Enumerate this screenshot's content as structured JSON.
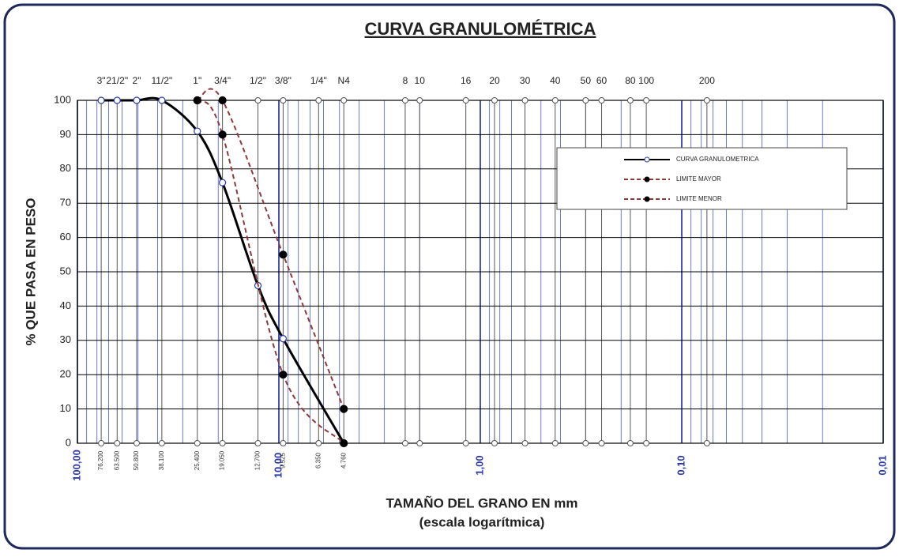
{
  "chart_data": {
    "type": "line",
    "title": "CURVA GRANULOMÉTRICA",
    "xlabel": "TAMAÑO DEL GRANO EN mm",
    "xlabel_note": "(escala logarítmica)",
    "ylabel": "% QUE PASA EN PESO",
    "log_x": true,
    "xlim": [
      100,
      0.01
    ],
    "ylim": [
      0,
      100
    ],
    "yticks": [
      0,
      10,
      20,
      30,
      40,
      50,
      60,
      70,
      80,
      90,
      100
    ],
    "xticks": [
      {
        "value": 100,
        "label": "100,00"
      },
      {
        "value": 10,
        "label": "10,00"
      },
      {
        "value": 1,
        "label": "1,00"
      },
      {
        "value": 0.1,
        "label": "0,10"
      },
      {
        "value": 0.01,
        "label": "0,01"
      }
    ],
    "sieves": [
      {
        "value": 76.2,
        "label": "3\""
      },
      {
        "value": 63.5,
        "label": "21/2\""
      },
      {
        "value": 50.8,
        "label": "2\""
      },
      {
        "value": 38.1,
        "label": "11/2\""
      },
      {
        "value": 25.4,
        "label": "1\""
      },
      {
        "value": 19.05,
        "label": "3/4\""
      },
      {
        "value": 12.7,
        "label": "1/2\""
      },
      {
        "value": 9.525,
        "label": "3/8\""
      },
      {
        "value": 6.35,
        "label": "1/4\""
      },
      {
        "value": 4.76,
        "label": "N4"
      },
      {
        "value": 2.36,
        "label": "8"
      },
      {
        "value": 2,
        "label": "10"
      },
      {
        "value": 1.18,
        "label": "16"
      },
      {
        "value": 0.85,
        "label": "20"
      },
      {
        "value": 0.6,
        "label": "30"
      },
      {
        "value": 0.425,
        "label": "40"
      },
      {
        "value": 0.3,
        "label": "50"
      },
      {
        "value": 0.25,
        "label": "60"
      },
      {
        "value": 0.18,
        "label": "80"
      },
      {
        "value": 0.15,
        "label": "100"
      },
      {
        "value": 0.075,
        "label": "200"
      }
    ],
    "size_ticks": [
      {
        "value": 76.2,
        "label": "76.200"
      },
      {
        "value": 63.5,
        "label": "63.500"
      },
      {
        "value": 50.8,
        "label": "50.800"
      },
      {
        "value": 38.1,
        "label": "38.100"
      },
      {
        "value": 25.4,
        "label": "25.400"
      },
      {
        "value": 19.05,
        "label": "19.050"
      },
      {
        "value": 12.7,
        "label": "12.700"
      },
      {
        "value": 9.525,
        "label": "9.525"
      },
      {
        "value": 6.35,
        "label": "6.350"
      },
      {
        "value": 4.76,
        "label": "4.760"
      }
    ],
    "series": [
      {
        "name": "CURVA GRANULOMETRICA",
        "color": "#000000",
        "dash": false,
        "marker": "open",
        "x": [
          76.2,
          63.5,
          50.8,
          38.1,
          25.4,
          19.05,
          12.7,
          9.525,
          4.76
        ],
        "values": [
          100,
          100,
          100,
          100,
          91,
          76,
          46,
          30.5,
          0
        ]
      },
      {
        "name": "LIMITE MAYOR",
        "color": "#8b3a3a",
        "dash": true,
        "marker": "filled",
        "x": [
          25.4,
          19.05,
          9.525,
          4.76
        ],
        "values": [
          100,
          100,
          55,
          10
        ]
      },
      {
        "name": "LIMITE MENOR",
        "color": "#8b3a3a",
        "dash": true,
        "marker": "filled",
        "x": [
          25.4,
          19.05,
          9.525,
          4.76
        ],
        "values": [
          100,
          90,
          20,
          0
        ]
      }
    ],
    "grid": true
  }
}
